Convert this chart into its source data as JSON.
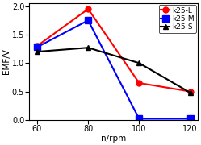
{
  "x": [
    60,
    80,
    100,
    120
  ],
  "series": [
    {
      "label": "k25-L",
      "color": "red",
      "marker": "o",
      "markersize": 5,
      "linewidth": 1.5,
      "values": [
        1.3,
        1.95,
        0.65,
        0.5
      ],
      "mfc": "red",
      "mec": "red"
    },
    {
      "label": "k25-M",
      "color": "blue",
      "marker": "s",
      "markersize": 6,
      "linewidth": 1.5,
      "values": [
        1.28,
        1.75,
        0.02,
        0.02
      ],
      "mfc": "blue",
      "mec": "blue"
    },
    {
      "label": "k25-S",
      "color": "black",
      "marker": "^",
      "markersize": 5,
      "linewidth": 1.5,
      "values": [
        1.2,
        1.27,
        1.0,
        0.48
      ],
      "mfc": "black",
      "mec": "black"
    }
  ],
  "xlabel": "n/rpm",
  "ylabel": "EMF/V",
  "xlim": [
    57,
    123
  ],
  "ylim": [
    0,
    2.05
  ],
  "xticks": [
    60,
    80,
    100,
    120
  ],
  "yticks": [
    0,
    0.5,
    1,
    1.5,
    2
  ],
  "legend_loc": "upper right",
  "background_color": "#ffffff",
  "axis_fontsize": 7.5,
  "tick_fontsize": 7
}
